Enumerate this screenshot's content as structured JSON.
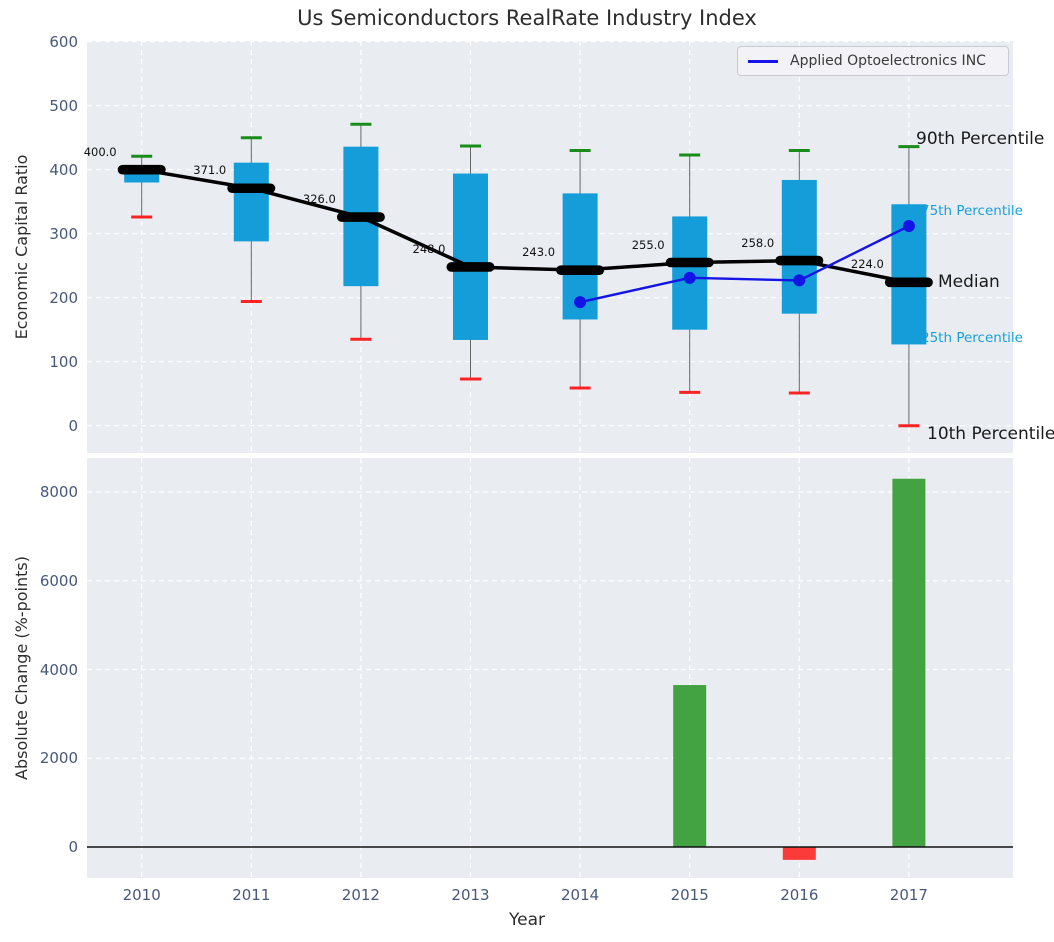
{
  "title": "Us Semiconductors RealRate Industry Index",
  "legend": {
    "label": "Applied Optoelectronics INC",
    "line_color": "#1414e6"
  },
  "axes": {
    "top": {
      "ylabel": "Economic Capital Ratio",
      "yticks": [
        0,
        100,
        200,
        300,
        400,
        500,
        600
      ]
    },
    "bottom": {
      "ylabel": "Absolute Change (%-points)",
      "yticks": [
        0,
        2000,
        4000,
        6000,
        8000
      ],
      "xlabel": "Year",
      "xticks": [
        "2010",
        "2011",
        "2012",
        "2013",
        "2014",
        "2015",
        "2016",
        "2017"
      ]
    }
  },
  "annotations": {
    "p90": "90th Percentile",
    "p75": "75th Percentile",
    "median": "Median",
    "p25": "25th Percentile",
    "p10": "10th Percentile"
  },
  "colors": {
    "box_fill": "#149dd8",
    "whisker": "#666666",
    "cap_90": "#1a8c1a",
    "cap_10": "#ff2222",
    "median_line": "#000000",
    "company_line": "#1414e6",
    "bar_positive": "#43a343",
    "bar_negative": "#fb3a3a",
    "plot_background": "#e9edf2",
    "grid": "#ffffff",
    "tick_label": "#47587b",
    "percentile_label_cyan": "#17a0dc"
  },
  "chart_data": [
    {
      "type": "box",
      "title": "Us Semiconductors RealRate Industry Index",
      "ylabel": "Economic Capital Ratio",
      "ylim": [
        -42,
        600
      ],
      "grid": true,
      "legend_position": "upper right",
      "categories": [
        2010,
        2011,
        2012,
        2013,
        2014,
        2015,
        2016,
        2017
      ],
      "series": [
        {
          "name": "90th Percentile",
          "values": [
            421,
            450,
            471,
            437,
            430,
            423,
            430,
            436
          ]
        },
        {
          "name": "75th Percentile",
          "values": [
            406,
            411,
            436,
            394,
            363,
            327,
            384,
            346
          ]
        },
        {
          "name": "Median",
          "values": [
            400,
            371,
            326,
            248,
            243,
            255,
            258,
            224
          ]
        },
        {
          "name": "25th Percentile",
          "values": [
            380,
            288,
            218,
            134,
            166,
            150,
            175,
            127
          ]
        },
        {
          "name": "10th Percentile",
          "values": [
            326,
            194,
            135,
            73,
            59,
            52,
            51,
            0
          ]
        },
        {
          "name": "Applied Optoelectronics INC",
          "values": [
            null,
            null,
            null,
            null,
            193,
            231,
            227,
            312
          ]
        }
      ],
      "median_labels": [
        "400.0",
        "371.0",
        "326.0",
        "248.0",
        "243.0",
        "255.0",
        "258.0",
        "224.0"
      ]
    },
    {
      "type": "bar",
      "ylabel": "Absolute Change (%-points)",
      "xlabel": "Year",
      "ylim": [
        -700,
        8770
      ],
      "grid": true,
      "categories": [
        2010,
        2011,
        2012,
        2013,
        2014,
        2015,
        2016,
        2017
      ],
      "values": [
        0,
        0,
        0,
        0,
        0,
        3650,
        -290,
        8300
      ]
    }
  ]
}
